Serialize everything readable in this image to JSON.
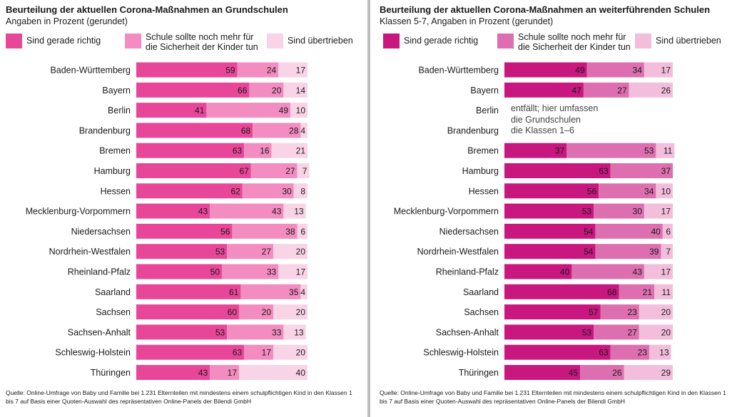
{
  "colors": {
    "left": [
      "#e84799",
      "#f38cc0",
      "#f9d3e6"
    ],
    "right": [
      "#c8177f",
      "#dd6fb0",
      "#f3bedc"
    ]
  },
  "left": {
    "title": "Beurteilung der aktuellen Corona-Maßnahmen an Grundschulen",
    "subtitle": "Angaben in Prozent (gerundet)",
    "legend": [
      {
        "line1": "Sind gerade richtig",
        "line2": ""
      },
      {
        "line1": "Schule sollte noch mehr für",
        "line2": "die Sicherheit der Kinder tun"
      },
      {
        "line1": "Sind übertrieben",
        "line2": ""
      }
    ],
    "source": "Quelle: Online-Umfrage von Baby und Familie bei 1.231 Elternteilen mit mindestens einem schulpflichtigen Kind in den Klassen 1 bis 7 auf Basis einer Quoten-Auswahl des repräsentativen Online-Panels der Bilendi GmbH"
  },
  "right": {
    "title": "Beurteilung der aktuellen Corona-Maßnahmen an weiterführenden Schulen",
    "subtitle": "Klassen 5-7, Angaben in Prozent (gerundet)",
    "legend": [
      {
        "line1": "Sind gerade richtig",
        "line2": ""
      },
      {
        "line1": "Schule sollte noch mehr für",
        "line2": "die Sicherheit der Kinder tun"
      },
      {
        "line1": "Sind übertrieben",
        "line2": ""
      }
    ],
    "note": [
      "entfällt; hier umfassen",
      "die Grundschulen",
      "die Klassen 1–6"
    ],
    "source": "Quelle: Online-Umfrage von Baby und Familie bei 1.231 Elternteilen mit mindestens einem schulpflichtigen Kind in den Klassen 1 bis 7 auf Basis einer Quoten-Auswahl des repräsentativen Online-Panels der Bilendi GmbH"
  },
  "chart_data": [
    {
      "type": "bar",
      "stacked": true,
      "orientation": "horizontal",
      "title": "Beurteilung der aktuellen Corona-Maßnahmen an Grundschulen",
      "subtitle": "Angaben in Prozent (gerundet)",
      "xlim": [
        0,
        100
      ],
      "categories": [
        "Baden-Württemberg",
        "Bayern",
        "Berlin",
        "Brandenburg",
        "Bremen",
        "Hamburg",
        "Hessen",
        "Mecklenburg-Vorpommern",
        "Niedersachsen",
        "Nordrhein-Westfalen",
        "Rheinland-Pfalz",
        "Saarland",
        "Sachsen",
        "Sachsen-Anhalt",
        "Schleswig-Holstein",
        "Thüringen"
      ],
      "series": [
        {
          "name": "Sind gerade richtig",
          "values": [
            59,
            66,
            41,
            68,
            63,
            67,
            62,
            43,
            56,
            53,
            50,
            61,
            60,
            53,
            63,
            43
          ]
        },
        {
          "name": "Schule sollte noch mehr für die Sicherheit der Kinder tun",
          "values": [
            24,
            20,
            49,
            28,
            16,
            27,
            30,
            43,
            38,
            27,
            33,
            35,
            20,
            33,
            17,
            17
          ]
        },
        {
          "name": "Sind übertrieben",
          "values": [
            17,
            14,
            10,
            4,
            21,
            7,
            8,
            13,
            6,
            20,
            17,
            4,
            20,
            13,
            20,
            40
          ]
        }
      ]
    },
    {
      "type": "bar",
      "stacked": true,
      "orientation": "horizontal",
      "title": "Beurteilung der aktuellen Corona-Maßnahmen an weiterführenden Schulen",
      "subtitle": "Klassen 5-7, Angaben in Prozent (gerundet)",
      "xlim": [
        0,
        100
      ],
      "categories": [
        "Baden-Württemberg",
        "Bayern",
        "Berlin",
        "Brandenburg",
        "Bremen",
        "Hamburg",
        "Hessen",
        "Mecklenburg-Vorpommern",
        "Niedersachsen",
        "Nordrhein-Westfalen",
        "Rheinland-Pfalz",
        "Saarland",
        "Sachsen",
        "Sachsen-Anhalt",
        "Schleswig-Holstein",
        "Thüringen"
      ],
      "series": [
        {
          "name": "Sind gerade richtig",
          "values": [
            49,
            47,
            null,
            null,
            37,
            63,
            56,
            53,
            54,
            54,
            40,
            68,
            57,
            53,
            63,
            45
          ]
        },
        {
          "name": "Schule sollte noch mehr für die Sicherheit der Kinder tun",
          "values": [
            34,
            27,
            null,
            null,
            53,
            37,
            34,
            30,
            40,
            39,
            43,
            21,
            23,
            27,
            23,
            26
          ]
        },
        {
          "name": "Sind übertrieben",
          "values": [
            17,
            26,
            null,
            null,
            11,
            null,
            10,
            17,
            6,
            7,
            17,
            11,
            20,
            20,
            13,
            29
          ]
        }
      ]
    }
  ]
}
